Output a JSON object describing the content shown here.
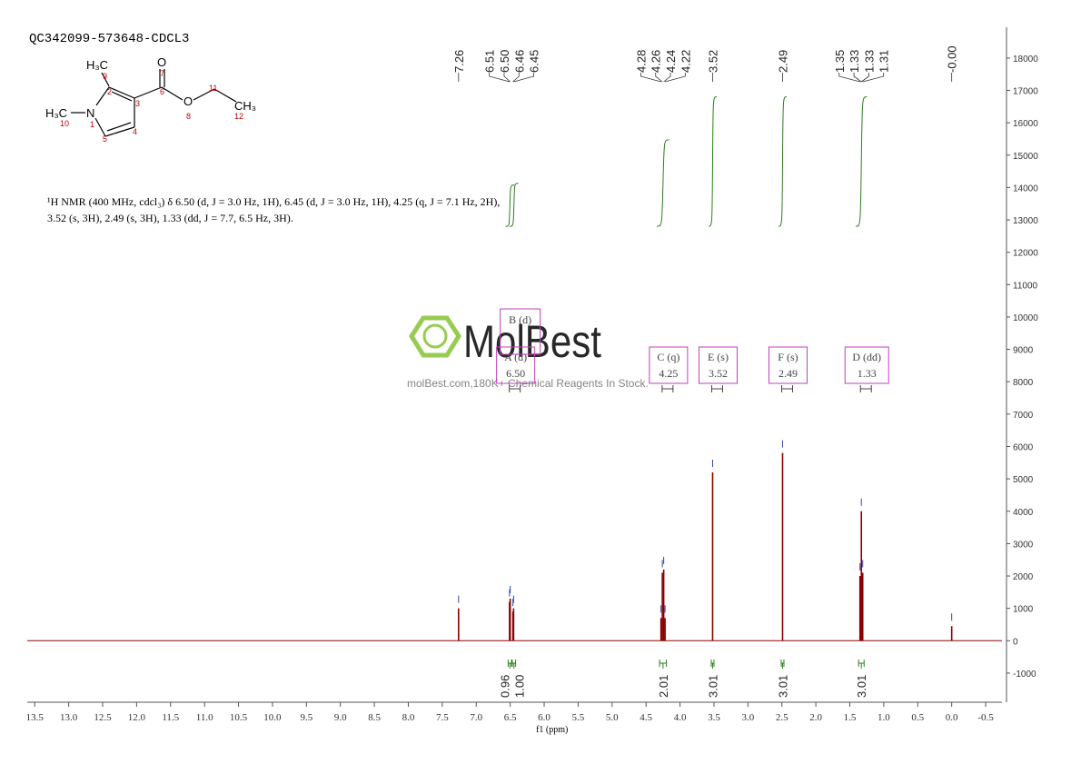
{
  "structure": {
    "atoms": [
      "H₃C",
      "O",
      "N",
      "O",
      "CH₃",
      "H₃C"
    ],
    "numbers": [
      "9",
      "7",
      "2",
      "6",
      "3",
      "11",
      "10",
      "1",
      "8",
      "12",
      "5",
      "4"
    ]
  },
  "description": [
    "¹H NMR (400 MHz, cdcl₃) δ 6.50 (d, J = 3.0 Hz, 1H), 6.45 (d, J = 3.0 Hz, 1H), 4.25 (q, J = 7.1 Hz, 2H),",
    "3.52 (s, 3H), 2.49 (s, 3H), 1.33 (dd, J = 7.7, 6.5 Hz, 3H)."
  ],
  "watermark": {
    "logo": "MolBest",
    "tagline": "molBest.com,180K+ Chemical Reagents In Stock."
  },
  "chart_data": {
    "type": "stick",
    "title": "QC342099-573648-CDCL3",
    "xlabel": "f1 (ppm)",
    "color": "#8b0000",
    "integral_color": "#2e7d1e",
    "box_color": "#c040c0",
    "xlim": [
      13.61,
      -0.74
    ],
    "ylim": [
      -1900,
      18950
    ],
    "xticks": [
      13.5,
      {
        "value": 13,
        "label": "13.0"
      },
      12.5,
      {
        "value": 12,
        "label": "12.0"
      },
      11.5,
      {
        "value": 11,
        "label": "11.0"
      },
      10.5,
      {
        "value": 10,
        "label": "10.0"
      },
      9.5,
      {
        "value": 9,
        "label": "9.0"
      },
      8.5,
      {
        "value": 8,
        "label": "8.0"
      },
      7.5,
      {
        "value": 7,
        "label": "7.0"
      },
      6.5,
      {
        "value": 6,
        "label": "6.0"
      },
      5.5,
      {
        "value": 5,
        "label": "5.0"
      },
      4.5,
      {
        "value": 4,
        "label": "4.0"
      },
      3.5,
      {
        "value": 3,
        "label": "3.0"
      },
      2.5,
      {
        "value": 2,
        "label": "2.0"
      },
      1.5,
      {
        "value": 1,
        "label": "1.0"
      },
      0.5,
      {
        "value": 0,
        "label": "0.0"
      },
      -0.5
    ],
    "yticks": [
      -1000,
      0,
      1000,
      2000,
      3000,
      4000,
      5000,
      6000,
      7000,
      8000,
      9000,
      10000,
      11000,
      12000,
      13000,
      14000,
      15000,
      16000,
      17000,
      18000
    ],
    "x": [
      7.26,
      6.51,
      6.5,
      6.46,
      6.45,
      4.28,
      4.26,
      4.24,
      4.22,
      3.52,
      2.49,
      1.35,
      1.33,
      1.31,
      0
    ],
    "values": [
      1000,
      1200,
      1300,
      900,
      1000,
      700,
      2100,
      2200,
      700,
      5200,
      5800,
      2000,
      4000,
      2100,
      450
    ],
    "peak_labels": [
      7.26,
      6.51,
      {
        "value": 6.5,
        "label": "6.50"
      },
      6.46,
      6.45,
      4.28,
      4.26,
      4.24,
      4.22,
      3.52,
      2.49,
      1.35,
      1.33,
      1.33,
      1.31,
      {
        "value": 0,
        "label": "-0.00"
      }
    ],
    "integrals": {
      "from": [
        6.53,
        6.47,
        4.3,
        3.54,
        2.51,
        1.37
      ],
      "to": [
        6.48,
        6.42,
        4.2,
        3.5,
        2.47,
        1.29
      ],
      "values": [
        0.96,
        {
          "value": 1,
          "label": "1.00"
        },
        2.01,
        3.01,
        3.01,
        3.01
      ]
    },
    "multiplets": [
      {
        "label": "B (d)"
      },
      {
        "label": "A (d)",
        "shift": {
          "value": 6.5,
          "label": "6.50"
        }
      },
      {
        "label": "C (q)",
        "shift": 4.25
      },
      {
        "label": "E (s)",
        "shift": 3.52
      },
      {
        "label": "F (s)",
        "shift": 2.49
      },
      {
        "label": "D (dd)",
        "shift": 1.33
      }
    ]
  }
}
